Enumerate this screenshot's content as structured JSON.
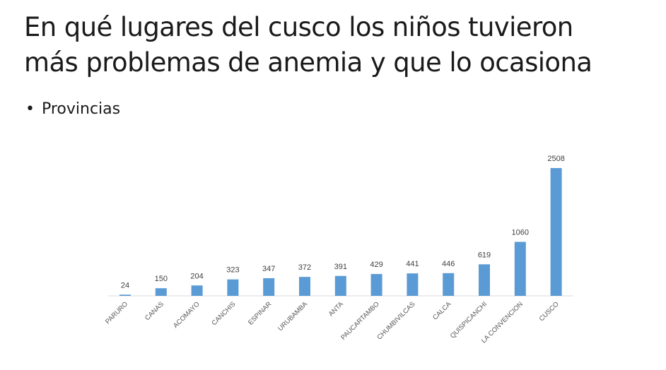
{
  "slide": {
    "title_line1": "En qué lugares del cusco los niños tuvieron",
    "title_line2": "más problemas de anemia y que lo ocasiona",
    "bullet": "Provincias"
  },
  "chart_data": {
    "type": "bar",
    "categories": [
      "PARURO",
      "CANAS",
      "ACOMAYO",
      "CANCHIS",
      "ESPINAR",
      "URUBAMBA",
      "ANTA",
      "PAUCARTAMBO",
      "CHUMBIVILCAS",
      "CALCA",
      "QUISPICANCHI",
      "LA CONVENCION",
      "CUSCO"
    ],
    "values": [
      24,
      150,
      204,
      323,
      347,
      372,
      391,
      429,
      441,
      446,
      619,
      1060,
      2508
    ],
    "title": "",
    "xlabel": "",
    "ylabel": "",
    "ylim": [
      0,
      2508
    ],
    "grid": false,
    "legend": "none",
    "bar_color": "#5b9bd5",
    "axis_color": "#d9d9d9",
    "label_color": "#404040"
  }
}
